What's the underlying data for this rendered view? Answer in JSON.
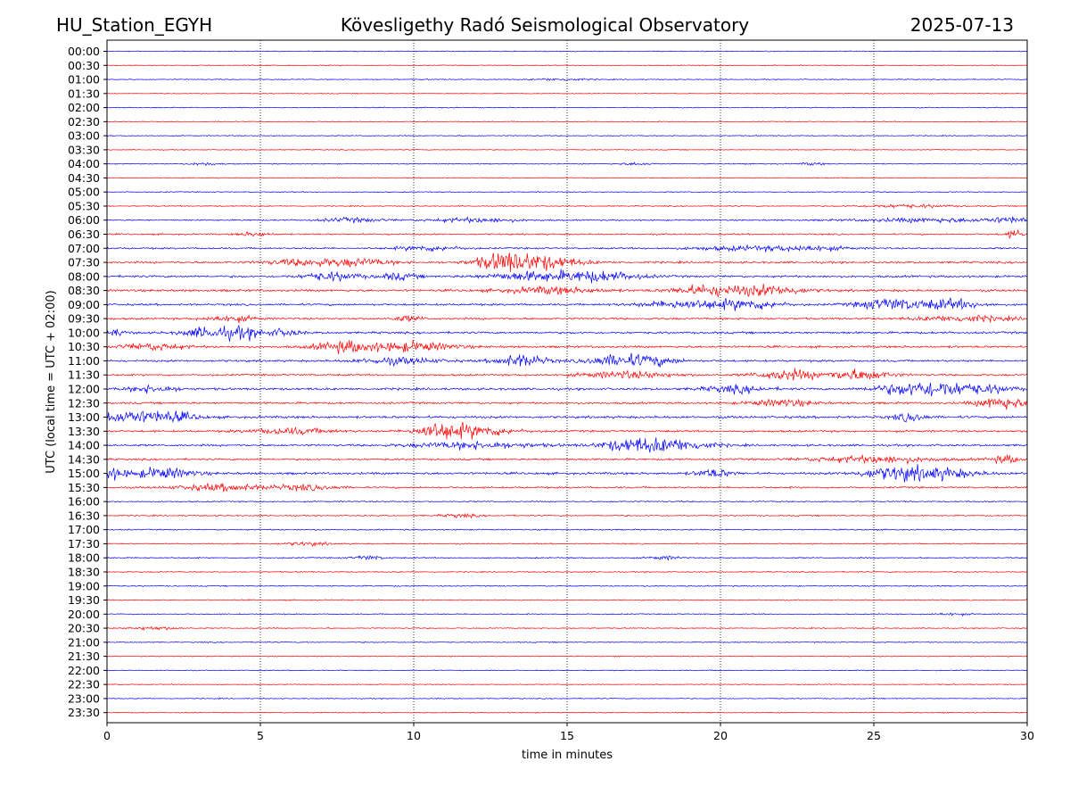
{
  "header": {
    "station": "HU_Station_EGYH",
    "observatory": "Kövesligethy Radó Seismological Observatory",
    "date": "2025-07-13"
  },
  "chart_data": {
    "type": "line",
    "title": "Kövesligethy Radó Seismological Observatory",
    "xlabel": "time in minutes",
    "ylabel": "UTC (local time = UTC + 02:00)",
    "xlim": [
      0,
      30
    ],
    "x_ticks": [
      "0",
      "5",
      "10",
      "15",
      "20",
      "25",
      "30"
    ],
    "x_tick_values": [
      0,
      5,
      10,
      15,
      20,
      25,
      30
    ],
    "grid": "vertical dotted at x ticks",
    "series_colors": [
      "#0000ff",
      "#ff0000"
    ],
    "rows": [
      {
        "label": "00:00",
        "activity": 0.1,
        "bursts": []
      },
      {
        "label": "00:30",
        "activity": 0.08,
        "bursts": []
      },
      {
        "label": "01:00",
        "activity": 0.1,
        "bursts": [
          [
            14.8,
            0.8,
            0.3
          ]
        ]
      },
      {
        "label": "01:30",
        "activity": 0.08,
        "bursts": []
      },
      {
        "label": "02:00",
        "activity": 0.1,
        "bursts": []
      },
      {
        "label": "02:30",
        "activity": 0.08,
        "bursts": []
      },
      {
        "label": "03:00",
        "activity": 0.1,
        "bursts": []
      },
      {
        "label": "03:30",
        "activity": 0.08,
        "bursts": []
      },
      {
        "label": "04:00",
        "activity": 0.12,
        "bursts": [
          [
            3.2,
            0.4,
            0.4
          ],
          [
            17.3,
            0.6,
            0.3
          ],
          [
            23.0,
            0.4,
            0.3
          ]
        ]
      },
      {
        "label": "04:30",
        "activity": 0.1,
        "bursts": []
      },
      {
        "label": "05:00",
        "activity": 0.12,
        "bursts": []
      },
      {
        "label": "05:30",
        "activity": 0.15,
        "bursts": [
          [
            26.0,
            1.5,
            0.4
          ]
        ]
      },
      {
        "label": "06:00",
        "activity": 0.3,
        "bursts": [
          [
            8.0,
            1.0,
            0.5
          ],
          [
            12.0,
            1.5,
            0.5
          ],
          [
            27.0,
            2.5,
            0.5
          ],
          [
            29.5,
            0.6,
            0.6
          ]
        ]
      },
      {
        "label": "06:30",
        "activity": 0.35,
        "bursts": [
          [
            4.8,
            0.5,
            0.5
          ],
          [
            29.6,
            0.3,
            1.0
          ]
        ]
      },
      {
        "label": "07:00",
        "activity": 0.4,
        "bursts": [
          [
            10.5,
            1.0,
            0.6
          ],
          [
            21.0,
            2.0,
            0.5
          ],
          [
            23.0,
            1.0,
            0.5
          ]
        ]
      },
      {
        "label": "07:30",
        "activity": 0.55,
        "bursts": [
          [
            6.5,
            1.2,
            0.8
          ],
          [
            8.3,
            1.0,
            0.8
          ],
          [
            12.8,
            0.8,
            1.6
          ],
          [
            14.0,
            1.3,
            1.8
          ]
        ]
      },
      {
        "label": "08:00",
        "activity": 0.6,
        "bursts": [
          [
            7.3,
            0.9,
            1.0
          ],
          [
            9.5,
            0.6,
            0.8
          ],
          [
            13.8,
            1.4,
            1.0
          ],
          [
            16.0,
            1.3,
            1.2
          ]
        ]
      },
      {
        "label": "08:30",
        "activity": 0.65,
        "bursts": [
          [
            14.5,
            1.5,
            0.8
          ],
          [
            19.5,
            1.0,
            1.2
          ],
          [
            21.5,
            1.2,
            1.2
          ]
        ]
      },
      {
        "label": "09:00",
        "activity": 0.55,
        "bursts": [
          [
            19.0,
            1.5,
            1.0
          ],
          [
            21.0,
            1.0,
            1.0
          ],
          [
            25.5,
            1.0,
            1.4
          ],
          [
            27.5,
            1.0,
            1.2
          ]
        ]
      },
      {
        "label": "09:30",
        "activity": 0.55,
        "bursts": [
          [
            4.0,
            0.8,
            0.7
          ],
          [
            9.8,
            0.5,
            0.6
          ],
          [
            28.0,
            1.5,
            0.7
          ]
        ]
      },
      {
        "label": "10:00",
        "activity": 0.6,
        "bursts": [
          [
            0.2,
            0.4,
            0.8
          ],
          [
            3.3,
            0.8,
            1.3
          ],
          [
            4.5,
            0.7,
            1.2
          ],
          [
            5.8,
            0.5,
            0.8
          ]
        ]
      },
      {
        "label": "10:30",
        "activity": 0.6,
        "bursts": [
          [
            1.5,
            1.0,
            0.8
          ],
          [
            7.8,
            1.0,
            1.3
          ],
          [
            10.0,
            1.3,
            1.1
          ]
        ]
      },
      {
        "label": "11:00",
        "activity": 0.55,
        "bursts": [
          [
            9.5,
            1.3,
            0.8
          ],
          [
            13.5,
            0.8,
            1.5
          ],
          [
            16.5,
            0.9,
            1.3
          ],
          [
            17.8,
            0.8,
            1.1
          ]
        ]
      },
      {
        "label": "11:30",
        "activity": 0.5,
        "bursts": [
          [
            17.0,
            1.5,
            0.8
          ],
          [
            22.2,
            1.0,
            1.2
          ],
          [
            24.5,
            1.0,
            1.3
          ]
        ]
      },
      {
        "label": "12:00",
        "activity": 0.65,
        "bursts": [
          [
            1.5,
            0.8,
            0.8
          ],
          [
            20.5,
            1.0,
            0.8
          ],
          [
            26.0,
            1.0,
            1.3
          ],
          [
            27.2,
            0.8,
            1.4
          ],
          [
            28.5,
            1.0,
            1.0
          ]
        ]
      },
      {
        "label": "12:30",
        "activity": 0.55,
        "bursts": [
          [
            22.0,
            1.0,
            0.8
          ],
          [
            29.2,
            0.8,
            1.5
          ]
        ]
      },
      {
        "label": "13:00",
        "activity": 0.7,
        "bursts": [
          [
            0.7,
            1.2,
            1.4
          ],
          [
            2.2,
            0.8,
            0.9
          ],
          [
            26.2,
            0.5,
            1.0
          ]
        ]
      },
      {
        "label": "13:30",
        "activity": 0.55,
        "bursts": [
          [
            6.0,
            1.3,
            0.7
          ],
          [
            10.7,
            0.6,
            1.3
          ],
          [
            11.8,
            1.3,
            1.5
          ]
        ]
      },
      {
        "label": "14:00",
        "activity": 0.55,
        "bursts": [
          [
            12.0,
            2.0,
            0.8
          ],
          [
            17.0,
            1.0,
            1.3
          ],
          [
            18.5,
            1.2,
            1.4
          ]
        ]
      },
      {
        "label": "14:30",
        "activity": 0.5,
        "bursts": [
          [
            25.0,
            2.0,
            0.8
          ],
          [
            29.3,
            0.5,
            0.9
          ]
        ]
      },
      {
        "label": "15:00",
        "activity": 0.65,
        "bursts": [
          [
            0.2,
            0.4,
            1.2
          ],
          [
            1.8,
            1.0,
            1.3
          ],
          [
            19.8,
            0.6,
            1.0
          ],
          [
            25.5,
            1.0,
            1.2
          ],
          [
            27.0,
            1.3,
            1.3
          ]
        ]
      },
      {
        "label": "15:30",
        "activity": 0.45,
        "bursts": [
          [
            3.8,
            1.5,
            0.8
          ],
          [
            6.5,
            1.0,
            0.6
          ]
        ]
      },
      {
        "label": "16:00",
        "activity": 0.25,
        "bursts": []
      },
      {
        "label": "16:30",
        "activity": 0.25,
        "bursts": [
          [
            11.5,
            0.6,
            0.4
          ]
        ]
      },
      {
        "label": "17:00",
        "activity": 0.22,
        "bursts": []
      },
      {
        "label": "17:30",
        "activity": 0.22,
        "bursts": [
          [
            6.5,
            0.8,
            0.4
          ]
        ]
      },
      {
        "label": "18:00",
        "activity": 0.25,
        "bursts": [
          [
            8.5,
            0.5,
            0.5
          ],
          [
            18.2,
            0.5,
            0.4
          ]
        ]
      },
      {
        "label": "18:30",
        "activity": 0.18,
        "bursts": []
      },
      {
        "label": "19:00",
        "activity": 0.2,
        "bursts": []
      },
      {
        "label": "19:30",
        "activity": 0.18,
        "bursts": []
      },
      {
        "label": "20:00",
        "activity": 0.15,
        "bursts": [
          [
            27.5,
            0.6,
            0.3
          ]
        ]
      },
      {
        "label": "20:30",
        "activity": 0.15,
        "bursts": [
          [
            1.5,
            0.8,
            0.4
          ]
        ]
      },
      {
        "label": "21:00",
        "activity": 0.12,
        "bursts": []
      },
      {
        "label": "21:30",
        "activity": 0.1,
        "bursts": []
      },
      {
        "label": "22:00",
        "activity": 0.1,
        "bursts": []
      },
      {
        "label": "22:30",
        "activity": 0.1,
        "bursts": []
      },
      {
        "label": "23:00",
        "activity": 0.1,
        "bursts": []
      },
      {
        "label": "23:30",
        "activity": 0.1,
        "bursts": []
      }
    ]
  }
}
